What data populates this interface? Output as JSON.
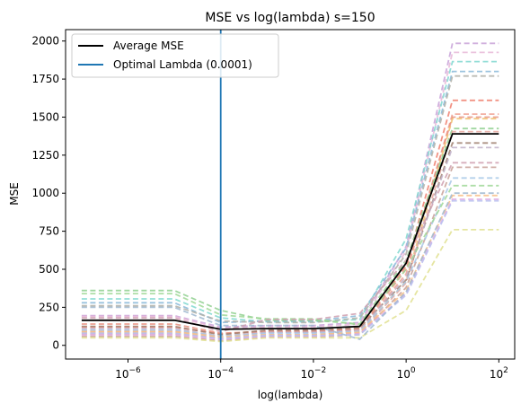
{
  "chart_data": {
    "type": "line",
    "title": "MSE vs log(lambda) s=150",
    "xlabel": "log(lambda)",
    "ylabel": "MSE",
    "xscale": "log",
    "x": [
      1e-07,
      1e-05,
      0.0001,
      0.001,
      0.01,
      0.1,
      1,
      10,
      100
    ],
    "xlim": [
      4.5e-08,
      220
    ],
    "ylim": [
      -90,
      2075
    ],
    "xticks": [
      {
        "value": 1e-06,
        "base": "10",
        "exp": "−6"
      },
      {
        "value": 0.0001,
        "base": "10",
        "exp": "−4"
      },
      {
        "value": 0.01,
        "base": "10",
        "exp": "−2"
      },
      {
        "value": 1,
        "base": "10",
        "exp": "0"
      },
      {
        "value": 100,
        "base": "10",
        "exp": "2"
      }
    ],
    "yticks": [
      0,
      250,
      500,
      750,
      1000,
      1250,
      1500,
      1750,
      2000
    ],
    "grid": false,
    "legend_position": "top-left",
    "legend": [
      {
        "label": "Average MSE",
        "color": "#000000"
      },
      {
        "label": "Optimal Lambda (0.0001)",
        "color": "#1f77b4"
      }
    ],
    "optimal_lambda": 0.0001,
    "average_series": {
      "name": "Average MSE",
      "color": "#000000",
      "values": [
        165,
        165,
        105,
        110,
        110,
        125,
        540,
        1390,
        1390
      ]
    },
    "fold_series": [
      {
        "color": "#c8a2d8",
        "values": [
          195,
          195,
          120,
          130,
          130,
          150,
          650,
          1985,
          1985
        ]
      },
      {
        "color": "#e8b8d8",
        "values": [
          190,
          190,
          110,
          120,
          120,
          140,
          620,
          1925,
          1925
        ]
      },
      {
        "color": "#80d8d0",
        "values": [
          305,
          305,
          180,
          155,
          155,
          170,
          700,
          1865,
          1865
        ]
      },
      {
        "color": "#8ab8d8",
        "values": [
          280,
          280,
          150,
          160,
          160,
          195,
          640,
          1800,
          1800
        ]
      },
      {
        "color": "#b0b0a8",
        "values": [
          260,
          260,
          160,
          150,
          150,
          180,
          600,
          1770,
          1770
        ]
      },
      {
        "color": "#f08070",
        "values": [
          120,
          120,
          75,
          95,
          95,
          110,
          520,
          1610,
          1610
        ]
      },
      {
        "color": "#f0a090",
        "values": [
          95,
          95,
          60,
          85,
          85,
          100,
          470,
          1520,
          1520
        ]
      },
      {
        "color": "#e89080",
        "values": [
          140,
          140,
          80,
          90,
          90,
          105,
          500,
          1500,
          1500
        ]
      },
      {
        "color": "#f0c070",
        "values": [
          85,
          85,
          50,
          70,
          70,
          90,
          420,
          1490,
          1490
        ]
      },
      {
        "color": "#90d090",
        "values": [
          360,
          360,
          230,
          165,
          165,
          140,
          560,
          1425,
          1425
        ]
      },
      {
        "color": "#e8a8a0",
        "values": [
          75,
          75,
          45,
          65,
          65,
          80,
          410,
          1405,
          1405
        ]
      },
      {
        "color": "#a08070",
        "values": [
          125,
          125,
          70,
          100,
          100,
          115,
          430,
          1330,
          1330
        ]
      },
      {
        "color": "#c0b0c8",
        "values": [
          110,
          110,
          60,
          85,
          85,
          100,
          450,
          1300,
          1300
        ]
      },
      {
        "color": "#c8a098",
        "values": [
          60,
          60,
          30,
          55,
          55,
          70,
          380,
          1170,
          1170
        ]
      },
      {
        "color": "#a8c8e8",
        "values": [
          100,
          100,
          60,
          80,
          80,
          90,
          420,
          1100,
          1100
        ]
      },
      {
        "color": "#a0d898",
        "values": [
          340,
          340,
          200,
          175,
          175,
          135,
          500,
          1050,
          1050
        ]
      },
      {
        "color": "#f8c088",
        "values": [
          90,
          90,
          55,
          70,
          70,
          85,
          360,
          985,
          985
        ]
      },
      {
        "color": "#e0a8e0",
        "values": [
          70,
          70,
          40,
          60,
          60,
          75,
          340,
          960,
          960
        ]
      },
      {
        "color": "#b8c0f0",
        "values": [
          80,
          80,
          45,
          65,
          65,
          70,
          330,
          950,
          950
        ]
      },
      {
        "color": "#e0e090",
        "values": [
          50,
          50,
          25,
          50,
          50,
          50,
          230,
          760,
          760
        ]
      },
      {
        "color": "#a0b8d0",
        "values": [
          250,
          250,
          130,
          130,
          130,
          40,
          350,
          1000,
          1000
        ]
      },
      {
        "color": "#d0a0b0",
        "values": [
          180,
          180,
          90,
          170,
          170,
          210,
          560,
          1200,
          1200
        ]
      }
    ]
  }
}
